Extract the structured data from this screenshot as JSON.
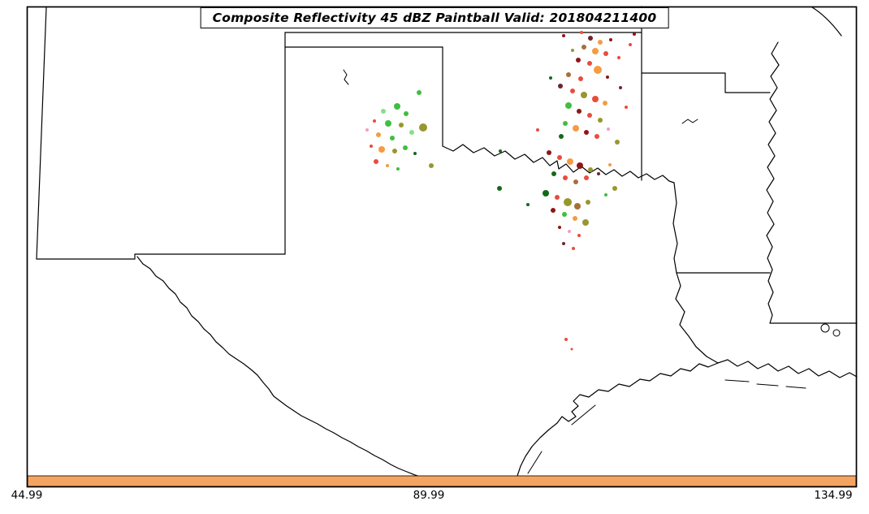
{
  "title": {
    "text": "Composite Reflectivity 45 dBZ Paintball Valid: 201804211400"
  },
  "axis": {
    "x_ticks": [
      "44.99",
      "89.99",
      "134.99"
    ]
  },
  "colors": {
    "background": "#ffffff",
    "frame": "#000000",
    "state_border": "#000000",
    "colorbar": "#F4A460"
  },
  "paintball": {
    "palette": {
      "green": "#3fbf3f",
      "lightgreen": "#86e086",
      "darkgreen": "#14691b",
      "olive": "#97972e",
      "orange": "#f59b43",
      "red": "#ea4b3e",
      "darkred": "#8f1616",
      "maroon": "#6e2430",
      "brown": "#a4703a",
      "pink": "#ef9ec4"
    },
    "points": [
      [
        516,
        114,
        3,
        "green"
      ],
      [
        489,
        131,
        4,
        "green"
      ],
      [
        472,
        137,
        3,
        "lightgreen"
      ],
      [
        500,
        140,
        3,
        "green"
      ],
      [
        461,
        149,
        2,
        "red"
      ],
      [
        478,
        152,
        4,
        "green"
      ],
      [
        494,
        154,
        3,
        "olive"
      ],
      [
        521,
        157,
        5,
        "olive"
      ],
      [
        507,
        163,
        3,
        "lightgreen"
      ],
      [
        452,
        160,
        2,
        "pink"
      ],
      [
        466,
        166,
        3,
        "orange"
      ],
      [
        483,
        170,
        3,
        "green"
      ],
      [
        457,
        180,
        2,
        "red"
      ],
      [
        470,
        184,
        4,
        "orange"
      ],
      [
        486,
        186,
        3,
        "olive"
      ],
      [
        499,
        182,
        3,
        "green"
      ],
      [
        511,
        189,
        2,
        "darkgreen"
      ],
      [
        463,
        199,
        3,
        "red"
      ],
      [
        477,
        204,
        2,
        "orange"
      ],
      [
        490,
        208,
        2,
        "green"
      ],
      [
        531,
        204,
        3,
        "olive"
      ],
      [
        703,
        30,
        3,
        "darkgreen"
      ],
      [
        694,
        44,
        2,
        "darkred"
      ],
      [
        716,
        40,
        2,
        "red"
      ],
      [
        727,
        47,
        3,
        "maroon"
      ],
      [
        739,
        52,
        3,
        "orange"
      ],
      [
        752,
        49,
        2,
        "darkred"
      ],
      [
        781,
        42,
        2,
        "darkred"
      ],
      [
        776,
        55,
        2,
        "red"
      ],
      [
        719,
        58,
        3,
        "brown"
      ],
      [
        733,
        63,
        4,
        "orange"
      ],
      [
        746,
        66,
        3,
        "red"
      ],
      [
        705,
        62,
        2,
        "olive"
      ],
      [
        762,
        71,
        2,
        "red"
      ],
      [
        712,
        74,
        3,
        "darkred"
      ],
      [
        726,
        78,
        3,
        "red"
      ],
      [
        736,
        86,
        5,
        "orange"
      ],
      [
        700,
        92,
        3,
        "brown"
      ],
      [
        678,
        96,
        2,
        "darkgreen"
      ],
      [
        715,
        97,
        3,
        "red"
      ],
      [
        748,
        95,
        2,
        "darkred"
      ],
      [
        764,
        108,
        2,
        "maroon"
      ],
      [
        690,
        106,
        3,
        "maroon"
      ],
      [
        705,
        112,
        3,
        "red"
      ],
      [
        719,
        117,
        4,
        "olive"
      ],
      [
        733,
        122,
        4,
        "red"
      ],
      [
        745,
        127,
        3,
        "orange"
      ],
      [
        700,
        130,
        4,
        "green"
      ],
      [
        771,
        132,
        2,
        "red"
      ],
      [
        713,
        137,
        3,
        "darkred"
      ],
      [
        726,
        142,
        3,
        "red"
      ],
      [
        739,
        148,
        3,
        "olive"
      ],
      [
        696,
        152,
        3,
        "green"
      ],
      [
        709,
        158,
        4,
        "orange"
      ],
      [
        722,
        163,
        3,
        "darkred"
      ],
      [
        735,
        168,
        3,
        "red"
      ],
      [
        749,
        159,
        2,
        "pink"
      ],
      [
        691,
        168,
        3,
        "darkgreen"
      ],
      [
        662,
        160,
        2,
        "red"
      ],
      [
        760,
        175,
        3,
        "olive"
      ],
      [
        616,
        186,
        2,
        "darkgreen"
      ],
      [
        676,
        188,
        3,
        "darkred"
      ],
      [
        689,
        194,
        3,
        "red"
      ],
      [
        702,
        199,
        4,
        "orange"
      ],
      [
        714,
        204,
        4,
        "darkred"
      ],
      [
        727,
        209,
        3,
        "olive"
      ],
      [
        682,
        214,
        3,
        "darkgreen"
      ],
      [
        696,
        219,
        3,
        "red"
      ],
      [
        709,
        224,
        3,
        "brown"
      ],
      [
        722,
        219,
        3,
        "red"
      ],
      [
        737,
        214,
        2,
        "maroon"
      ],
      [
        751,
        203,
        2,
        "orange"
      ],
      [
        615,
        232,
        3,
        "darkgreen"
      ],
      [
        672,
        238,
        4,
        "darkgreen"
      ],
      [
        686,
        243,
        3,
        "red"
      ],
      [
        699,
        249,
        5,
        "olive"
      ],
      [
        711,
        254,
        4,
        "brown"
      ],
      [
        724,
        249,
        3,
        "olive"
      ],
      [
        757,
        232,
        3,
        "olive"
      ],
      [
        746,
        240,
        2,
        "green"
      ],
      [
        681,
        259,
        3,
        "darkred"
      ],
      [
        695,
        264,
        3,
        "green"
      ],
      [
        708,
        269,
        3,
        "orange"
      ],
      [
        721,
        274,
        4,
        "olive"
      ],
      [
        650,
        252,
        2,
        "darkgreen"
      ],
      [
        689,
        280,
        2,
        "darkred"
      ],
      [
        701,
        285,
        2,
        "pink"
      ],
      [
        713,
        290,
        2,
        "red"
      ],
      [
        694,
        300,
        2,
        "maroon"
      ],
      [
        706,
        306,
        2,
        "red"
      ],
      [
        697,
        418,
        2,
        "red"
      ],
      [
        704,
        430,
        1.5,
        "red"
      ]
    ]
  }
}
